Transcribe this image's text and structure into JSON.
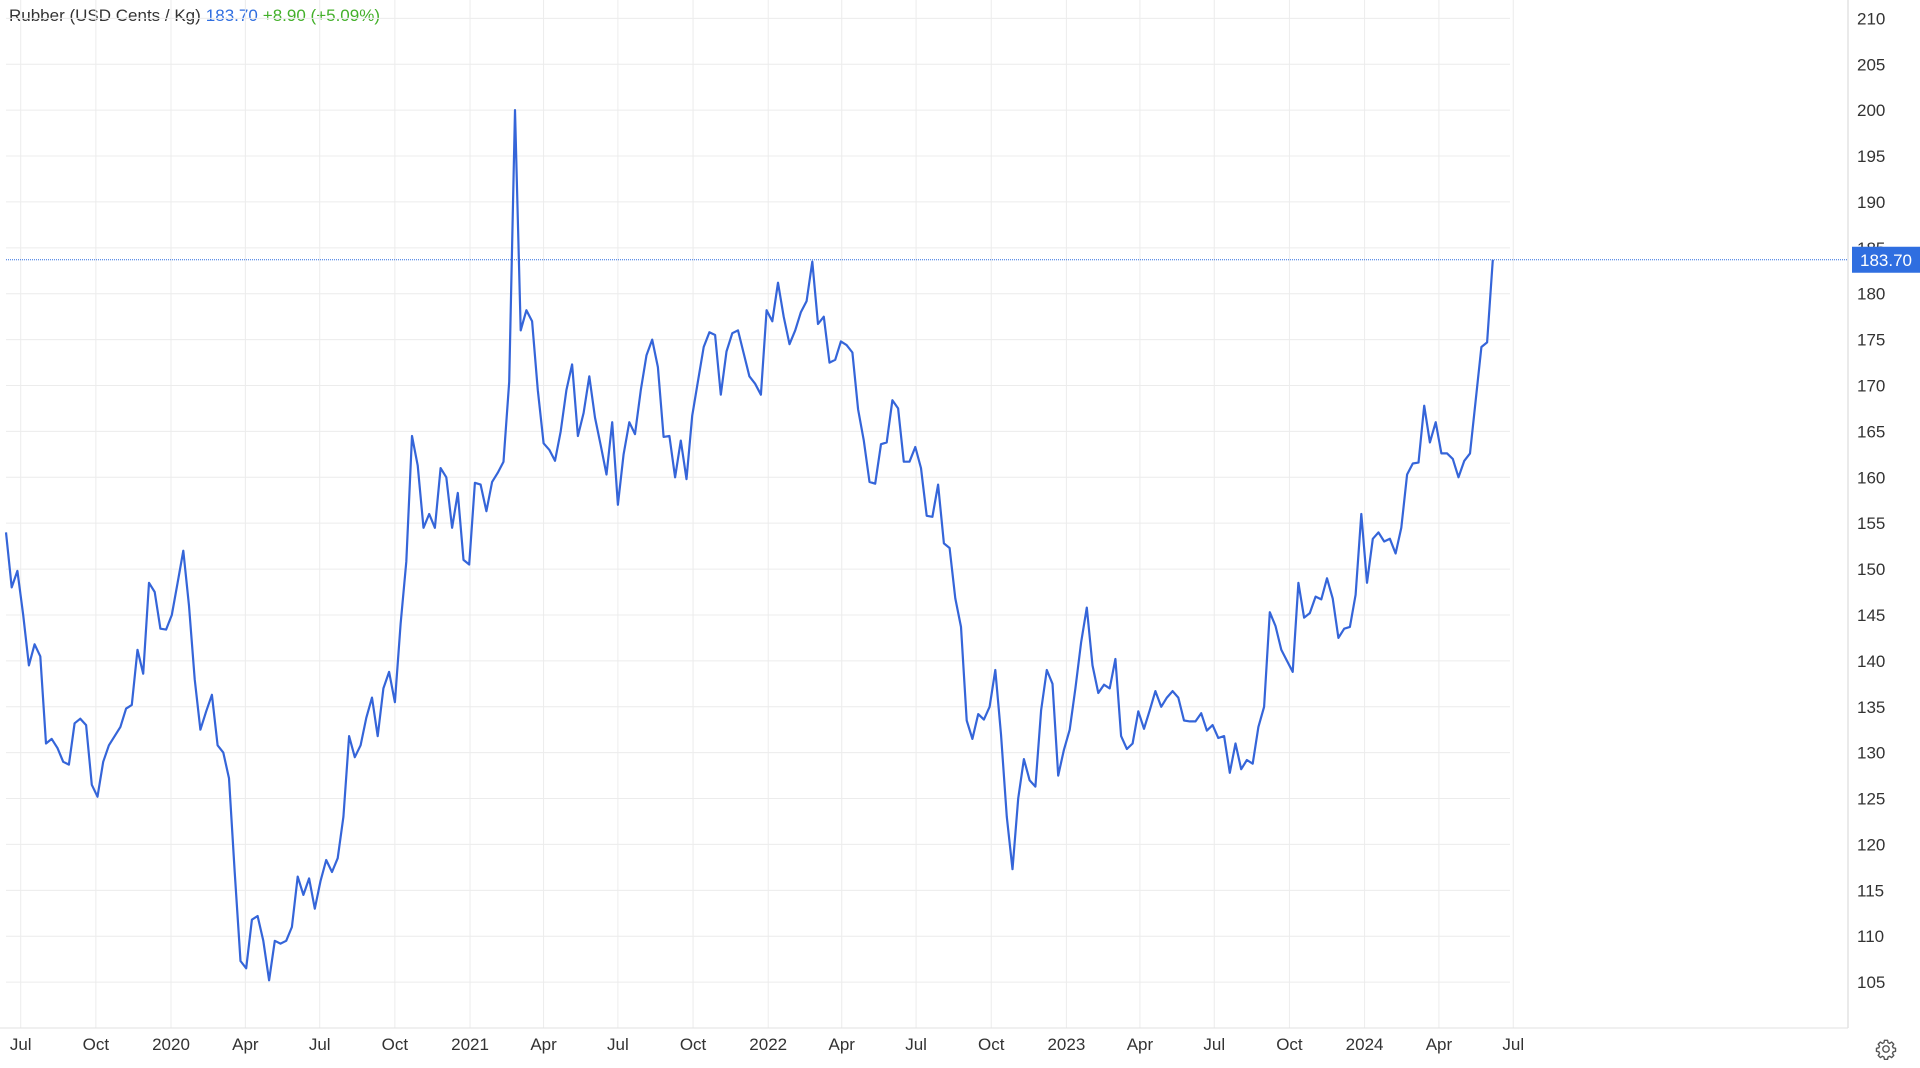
{
  "header": {
    "name": "Rubber (USD Cents / Kg)",
    "last": "183.70",
    "change": "+8.90 (+5.09%)"
  },
  "colors": {
    "line": "#3565d9",
    "last_tag": "#2f6ee0",
    "change_up": "#43b02a",
    "grid": "#ececec",
    "text": "#333333"
  },
  "settings_icon": "gear-icon",
  "chart_data": {
    "type": "line",
    "title": "Rubber (USD Cents / Kg)",
    "ylim": [
      100,
      212
    ],
    "xlim": [
      "2019-06-13",
      "2024-06-27"
    ],
    "grid": true,
    "y_ticks": [
      105,
      110,
      115,
      120,
      125,
      130,
      135,
      140,
      145,
      150,
      155,
      160,
      165,
      170,
      175,
      180,
      185,
      190,
      195,
      200,
      205,
      210
    ],
    "x_ticks": [
      {
        "date": "2019-07-01",
        "label": "Jul"
      },
      {
        "date": "2019-10-01",
        "label": "Oct"
      },
      {
        "date": "2020-01-01",
        "label": "2020"
      },
      {
        "date": "2020-04-01",
        "label": "Apr"
      },
      {
        "date": "2020-07-01",
        "label": "Jul"
      },
      {
        "date": "2020-10-01",
        "label": "Oct"
      },
      {
        "date": "2021-01-01",
        "label": "2021"
      },
      {
        "date": "2021-04-01",
        "label": "Apr"
      },
      {
        "date": "2021-07-01",
        "label": "Jul"
      },
      {
        "date": "2021-10-01",
        "label": "Oct"
      },
      {
        "date": "2022-01-01",
        "label": "2022"
      },
      {
        "date": "2022-04-01",
        "label": "Apr"
      },
      {
        "date": "2022-07-01",
        "label": "Jul"
      },
      {
        "date": "2022-10-01",
        "label": "Oct"
      },
      {
        "date": "2023-01-01",
        "label": "2023"
      },
      {
        "date": "2023-04-01",
        "label": "Apr"
      },
      {
        "date": "2023-07-01",
        "label": "Jul"
      },
      {
        "date": "2023-10-01",
        "label": "Oct"
      },
      {
        "date": "2024-01-01",
        "label": "2024"
      },
      {
        "date": "2024-04-01",
        "label": "Apr"
      },
      {
        "date": "2024-07-01",
        "label": "Jul"
      }
    ],
    "last_value": 183.7,
    "series": [
      {
        "x": [
          "2019-06-13",
          "2019-06-20",
          "2019-06-27",
          "2019-07-04",
          "2019-07-11",
          "2019-07-18",
          "2019-07-25",
          "2019-08-01",
          "2019-08-08",
          "2019-08-15",
          "2019-08-22",
          "2019-08-29",
          "2019-09-05",
          "2019-09-12",
          "2019-09-19",
          "2019-09-26",
          "2019-10-03",
          "2019-10-10",
          "2019-10-17",
          "2019-10-24",
          "2019-10-31",
          "2019-11-07",
          "2019-11-14",
          "2019-11-21",
          "2019-11-28",
          "2019-12-05",
          "2019-12-12",
          "2019-12-19",
          "2019-12-26",
          "2020-01-02",
          "2020-01-09",
          "2020-01-16",
          "2020-01-23",
          "2020-01-30",
          "2020-02-06",
          "2020-02-13",
          "2020-02-20",
          "2020-02-27",
          "2020-03-05",
          "2020-03-12",
          "2020-03-19",
          "2020-03-26",
          "2020-04-02",
          "2020-04-09",
          "2020-04-16",
          "2020-04-23",
          "2020-04-30",
          "2020-05-07",
          "2020-05-14",
          "2020-05-21",
          "2020-05-28",
          "2020-06-04",
          "2020-06-11",
          "2020-06-18",
          "2020-06-25",
          "2020-07-02",
          "2020-07-09",
          "2020-07-16",
          "2020-07-23",
          "2020-07-30",
          "2020-08-06",
          "2020-08-13",
          "2020-08-20",
          "2020-08-27",
          "2020-09-03",
          "2020-09-10",
          "2020-09-17",
          "2020-09-24",
          "2020-10-01",
          "2020-10-08",
          "2020-10-15",
          "2020-10-22",
          "2020-10-29",
          "2020-11-05",
          "2020-11-12",
          "2020-11-19",
          "2020-11-26",
          "2020-12-03",
          "2020-12-10",
          "2020-12-17",
          "2020-12-24",
          "2020-12-31",
          "2021-01-07",
          "2021-01-14",
          "2021-01-21",
          "2021-01-28",
          "2021-02-04",
          "2021-02-11",
          "2021-02-18",
          "2021-02-25",
          "2021-03-04",
          "2021-03-11",
          "2021-03-18",
          "2021-03-25",
          "2021-04-01",
          "2021-04-08",
          "2021-04-15",
          "2021-04-22",
          "2021-04-29",
          "2021-05-06",
          "2021-05-13",
          "2021-05-20",
          "2021-05-27",
          "2021-06-03",
          "2021-06-10",
          "2021-06-17",
          "2021-06-24",
          "2021-07-01",
          "2021-07-08",
          "2021-07-15",
          "2021-07-22",
          "2021-07-29",
          "2021-08-05",
          "2021-08-12",
          "2021-08-19",
          "2021-08-26",
          "2021-09-02",
          "2021-09-09",
          "2021-09-16",
          "2021-09-23",
          "2021-09-30",
          "2021-10-07",
          "2021-10-14",
          "2021-10-21",
          "2021-10-28",
          "2021-11-04",
          "2021-11-11",
          "2021-11-18",
          "2021-11-25",
          "2021-12-02",
          "2021-12-09",
          "2021-12-16",
          "2021-12-23",
          "2021-12-30",
          "2022-01-06",
          "2022-01-13",
          "2022-01-20",
          "2022-01-27",
          "2022-02-03",
          "2022-02-10",
          "2022-02-17",
          "2022-02-24",
          "2022-03-03",
          "2022-03-10",
          "2022-03-17",
          "2022-03-24",
          "2022-03-31",
          "2022-04-07",
          "2022-04-14",
          "2022-04-21",
          "2022-04-28",
          "2022-05-05",
          "2022-05-12",
          "2022-05-19",
          "2022-05-26",
          "2022-06-02",
          "2022-06-09",
          "2022-06-16",
          "2022-06-23",
          "2022-06-30",
          "2022-07-07",
          "2022-07-14",
          "2022-07-21",
          "2022-07-28",
          "2022-08-04",
          "2022-08-11",
          "2022-08-18",
          "2022-08-25",
          "2022-09-01",
          "2022-09-08",
          "2022-09-15",
          "2022-09-22",
          "2022-09-29",
          "2022-10-06",
          "2022-10-13",
          "2022-10-20",
          "2022-10-27",
          "2022-11-03",
          "2022-11-10",
          "2022-11-17",
          "2022-11-24",
          "2022-12-01",
          "2022-12-08",
          "2022-12-15",
          "2022-12-22",
          "2022-12-29",
          "2023-01-05",
          "2023-01-12",
          "2023-01-19",
          "2023-01-26",
          "2023-02-02",
          "2023-02-09",
          "2023-02-16",
          "2023-02-23",
          "2023-03-02",
          "2023-03-09",
          "2023-03-16",
          "2023-03-23",
          "2023-03-30",
          "2023-04-06",
          "2023-04-13",
          "2023-04-20",
          "2023-04-27",
          "2023-05-04",
          "2023-05-11",
          "2023-05-18",
          "2023-05-25",
          "2023-06-01",
          "2023-06-08",
          "2023-06-15",
          "2023-06-22",
          "2023-06-29",
          "2023-07-06",
          "2023-07-13",
          "2023-07-20",
          "2023-07-27",
          "2023-08-03",
          "2023-08-10",
          "2023-08-17",
          "2023-08-24",
          "2023-08-31",
          "2023-09-07",
          "2023-09-14",
          "2023-09-21",
          "2023-09-28",
          "2023-10-05",
          "2023-10-12",
          "2023-10-19",
          "2023-10-26",
          "2023-11-02",
          "2023-11-09",
          "2023-11-16",
          "2023-11-23",
          "2023-11-30",
          "2023-12-07",
          "2023-12-14",
          "2023-12-21",
          "2023-12-28",
          "2024-01-04",
          "2024-01-11",
          "2024-01-18",
          "2024-01-25",
          "2024-02-01",
          "2024-02-08",
          "2024-02-15",
          "2024-02-22",
          "2024-02-29",
          "2024-03-07",
          "2024-03-14",
          "2024-03-21",
          "2024-03-28",
          "2024-04-04",
          "2024-04-11",
          "2024-04-18",
          "2024-04-25",
          "2024-05-02",
          "2024-05-09",
          "2024-05-16",
          "2024-05-23",
          "2024-05-30",
          "2024-06-06"
        ],
        "values": [
          154.0,
          148.0,
          149.8,
          145.0,
          139.5,
          141.8,
          140.5,
          131.0,
          131.5,
          130.5,
          129.0,
          128.7,
          133.2,
          133.7,
          133.0,
          126.5,
          125.2,
          129.0,
          130.8,
          131.8,
          132.8,
          134.8,
          135.2,
          141.2,
          138.6,
          148.5,
          147.5,
          143.5,
          143.4,
          145.0,
          148.5,
          152.0,
          146.0,
          138.0,
          132.5,
          134.5,
          136.3,
          130.8,
          130.0,
          127.2,
          117.0,
          107.3,
          106.5,
          111.8,
          112.2,
          109.5,
          105.2,
          109.5,
          109.2,
          109.5,
          111.0,
          116.5,
          114.5,
          116.3,
          113.0,
          116.0,
          118.3,
          117.0,
          118.5,
          123.0,
          131.8,
          129.5,
          130.8,
          133.8,
          136.0,
          131.8,
          137.0,
          138.8,
          135.5,
          144.0,
          150.8,
          164.5,
          161.3,
          154.5,
          156.0,
          154.5,
          161.0,
          160.0,
          154.5,
          158.3,
          151.0,
          150.5,
          159.4,
          159.2,
          156.3,
          159.5,
          160.5,
          161.7,
          170.4,
          200.0,
          176.0,
          178.2,
          177.0,
          169.5,
          163.7,
          163.0,
          161.8,
          165.0,
          169.5,
          172.3,
          164.5,
          167.0,
          171.0,
          166.5,
          163.5,
          160.3,
          166.0,
          157.0,
          162.5,
          166.0,
          164.7,
          169.5,
          173.3,
          175.0,
          172.0,
          164.4,
          164.5,
          160.0,
          164.0,
          159.8,
          166.7,
          170.5,
          174.2,
          175.8,
          175.5,
          169.0,
          173.7,
          175.7,
          176.0,
          173.5,
          171.0,
          170.2,
          169.0,
          178.2,
          177.0,
          181.2,
          177.5,
          174.5,
          176.0,
          178.0,
          179.2,
          183.5,
          176.7,
          177.5,
          172.5,
          172.8,
          174.8,
          174.4,
          173.6,
          167.4,
          164.0,
          159.5,
          159.3,
          163.6,
          163.8,
          168.4,
          167.5,
          161.7,
          161.7,
          163.3,
          161.0,
          155.8,
          155.7,
          159.2,
          152.8,
          152.3,
          146.8,
          143.7,
          133.5,
          131.5,
          134.2,
          133.6,
          135.0,
          139.0,
          132.0,
          123.0,
          117.3,
          125.0,
          129.3,
          127.0,
          126.3,
          134.6,
          139.0,
          137.5,
          127.5,
          130.3,
          132.5,
          137.0,
          142.0,
          145.8,
          139.5,
          136.5,
          137.4,
          137.0,
          140.2,
          131.8,
          130.4,
          131.0,
          134.5,
          132.6,
          134.6,
          136.7,
          135.0,
          136.0,
          136.7,
          136.0,
          133.5,
          133.4,
          133.4,
          134.3,
          132.4,
          133.0,
          131.6,
          131.8,
          127.8,
          131.0,
          128.2,
          129.2,
          128.8,
          132.8,
          135.0,
          145.3,
          143.8,
          141.2,
          140.0,
          138.8,
          148.5,
          144.7,
          145.2,
          147.0,
          146.7,
          149.0,
          146.8,
          142.5,
          143.5,
          143.7,
          147.2,
          156.0,
          148.5,
          153.3,
          154.0,
          153.0,
          153.3,
          151.7,
          154.5,
          160.3,
          161.5,
          161.6,
          167.8,
          163.8,
          166.0,
          162.6,
          162.6,
          162.0,
          160.0,
          161.8,
          162.6,
          168.4,
          174.2,
          174.7,
          183.7
        ]
      }
    ]
  }
}
